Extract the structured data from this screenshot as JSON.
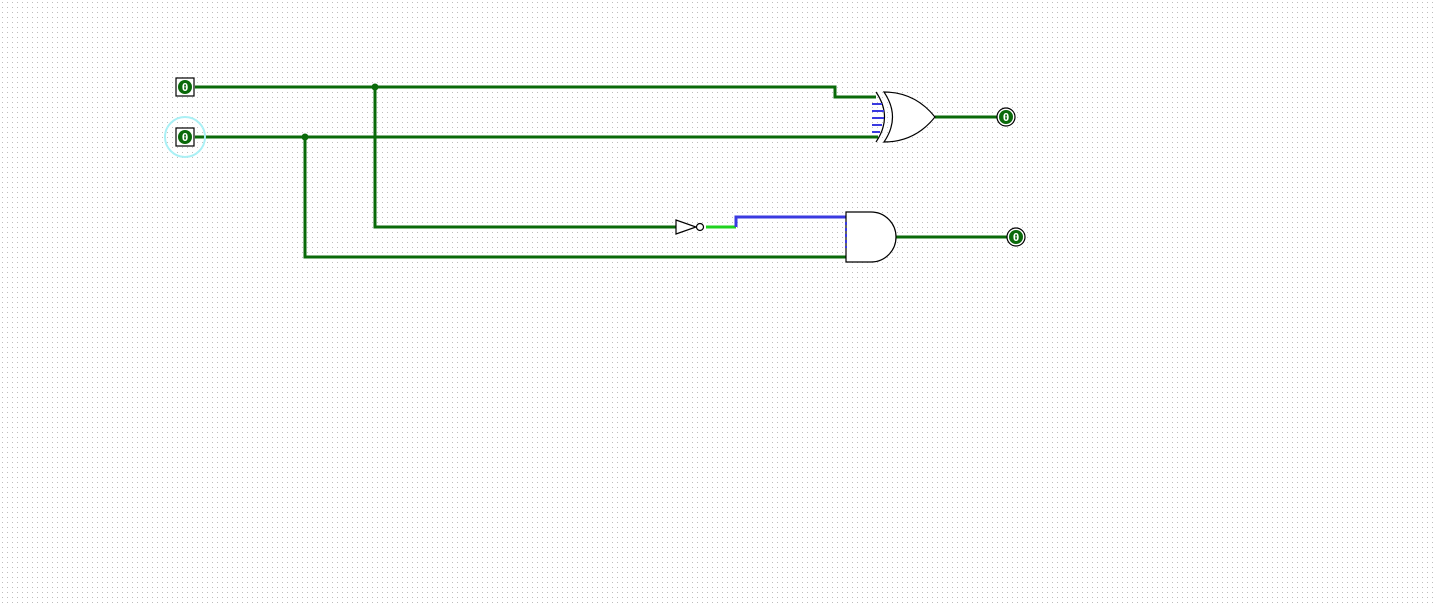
{
  "circuit": {
    "inputs": [
      {
        "id": "in_a",
        "value": "0"
      },
      {
        "id": "in_b",
        "value": "0",
        "selected": true
      }
    ],
    "outputs": [
      {
        "id": "xor_out",
        "value": "0"
      },
      {
        "id": "and_out",
        "value": "0"
      }
    ],
    "gates": [
      "XOR",
      "NOT",
      "AND"
    ],
    "colors": {
      "wire_value_0": "#0a6a0a",
      "wire_bright": "#1fd21f",
      "wire_unknown": "#3a3ae0",
      "selection_halo": "#aaf0f5",
      "grid_dot": "#bdbdbd"
    }
  }
}
